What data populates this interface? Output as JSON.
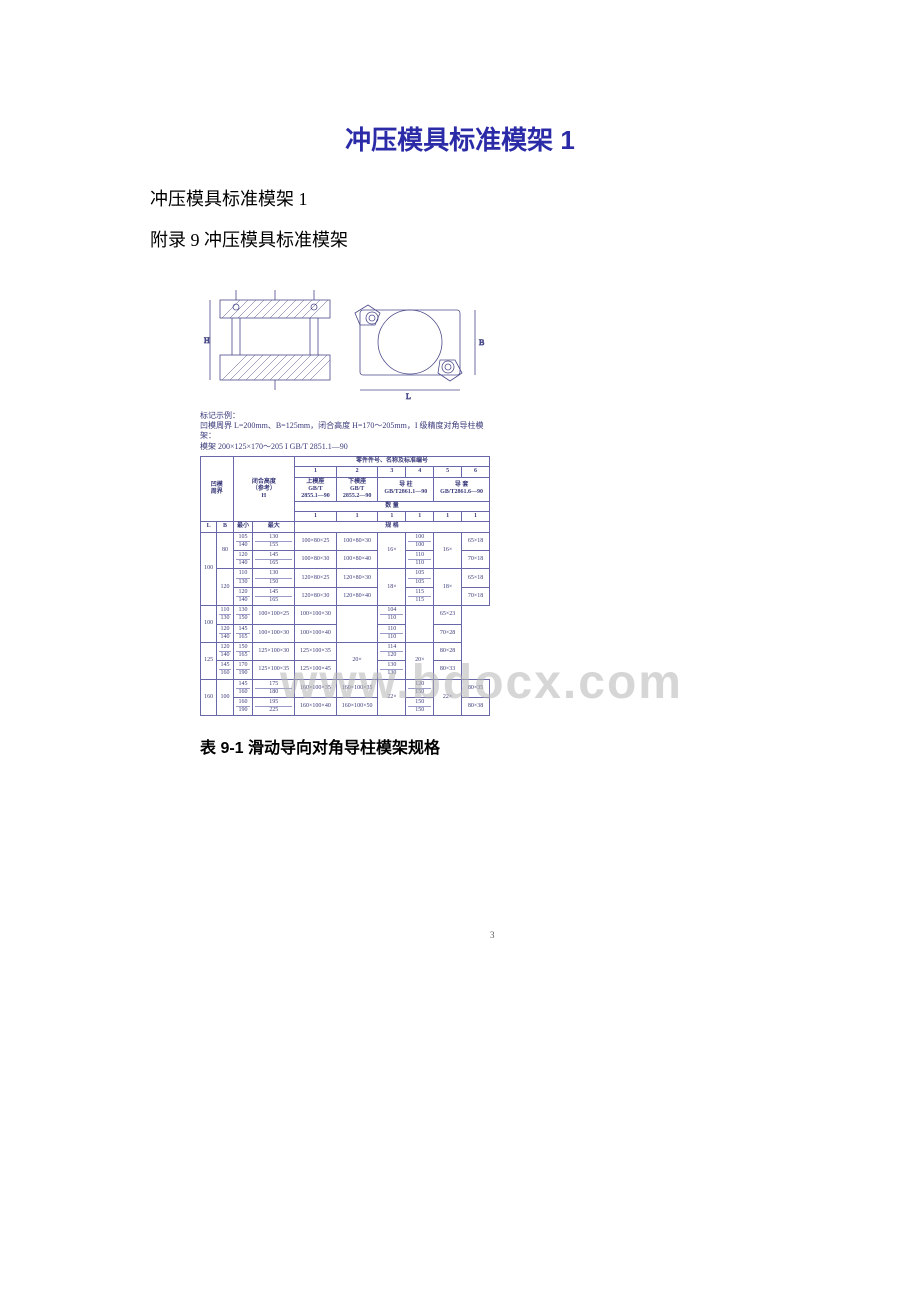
{
  "title": "冲压模具标准模架 1",
  "subtitle1": "冲压模具标准模架 1",
  "subtitle2": "附录 9 冲压模具标准模架",
  "watermark": "www.bdocx.com",
  "page_number": "3",
  "caption_line1": "标记示例：",
  "caption_line2": "凹模周界 L=200mm、B=125mm，闭合高度 H=170～205mm，I 级精度对角导柱模架：",
  "caption_line3": "模架 200×125×170～205 I GB/T 2851.1—90",
  "table": {
    "header_merged": "零件件号、名称及标准编号",
    "cols_num": [
      "1",
      "2",
      "3",
      "4",
      "5",
      "6"
    ],
    "row2_c1": "凹模",
    "row2_c2": "周界",
    "row3_c1": "闭合高度",
    "row3_c2": "（参考）",
    "row3_c3": "H",
    "upper": "上模座",
    "lower": "下模座",
    "gbt": "GB/T",
    "std1": "2855.1—90",
    "std2": "2855.2—90",
    "guide_post": "导  柱",
    "guide_post_std": "GB/T2861.1—90",
    "guide_bush": "导  套",
    "guide_bush_std": "GB/T2861.6—90",
    "qty_label": "数  量",
    "L": "L",
    "B": "B",
    "min": "最小",
    "max": "最大",
    "one": "1",
    "spec_label": "规  格",
    "rows": [
      {
        "L": "100",
        "B": "80",
        "h": [
          [
            "105",
            "130"
          ],
          [
            "140",
            "155"
          ],
          [
            "120",
            "145"
          ],
          [
            "140",
            "165"
          ]
        ],
        "up": [
          "100×80×25",
          "100×80×30"
        ],
        "lo": [
          "100×80×30",
          "100×80×40"
        ],
        "post": [
          [
            "100",
            "120"
          ],
          [
            "100",
            "120"
          ],
          [
            "110",
            "130"
          ],
          [
            "110",
            "130"
          ]
        ],
        "ppre": "16×",
        "bush": [
          "65×18",
          "70×18"
        ],
        "bpre": "16×",
        "b2": [
          "65×18",
          "70×18"
        ]
      },
      {
        "L": "",
        "B": "120",
        "h": [
          [
            "110",
            "130"
          ],
          [
            "130",
            "150"
          ],
          [
            "120",
            "145"
          ],
          [
            "140",
            "165"
          ]
        ],
        "up": [
          "120×80×25",
          "120×80×30"
        ],
        "lo": [
          "120×80×30",
          "120×80×40"
        ],
        "post": [
          [
            "105",
            "125"
          ],
          [
            "105",
            "125"
          ],
          [
            "115",
            "135"
          ],
          [
            "115",
            "140"
          ]
        ],
        "ppre": "18×",
        "bush": [
          "65×18",
          "70×18"
        ],
        "bpre": "18×",
        "b2": [
          "65×28",
          "70×28"
        ]
      },
      {
        "L": "",
        "B": "100",
        "h": [
          [
            "110",
            "130"
          ],
          [
            "130",
            "150"
          ],
          [
            "120",
            "145"
          ],
          [
            "140",
            "165"
          ]
        ],
        "up": [
          "100×100×25",
          "100×100×30"
        ],
        "lo": [
          "100×100×30",
          "100×100×40"
        ],
        "post": [
          [
            "104",
            "125"
          ],
          [
            "110",
            "130"
          ],
          [
            "110",
            "130"
          ],
          [
            "110",
            "150"
          ]
        ],
        "ppre": "",
        "bush": [
          "65×23",
          "70×28"
        ],
        "bpre": "",
        "b2": [
          "65×23",
          "70×28"
        ]
      },
      {
        "L": "",
        "B": "125",
        "h": [
          [
            "120",
            "150"
          ],
          [
            "140",
            "165"
          ],
          [
            "145",
            "170"
          ],
          [
            "160",
            "190"
          ]
        ],
        "up": [
          "125×100×30",
          "125×100×35"
        ],
        "lo": [
          "125×100×35",
          "125×100×45"
        ],
        "post": [
          [
            "114",
            "135"
          ],
          [
            "120",
            "145"
          ],
          [
            "130",
            "150"
          ],
          [
            "130",
            "150"
          ]
        ],
        "ppre": "20×",
        "bush": [
          "80×28",
          "80×33"
        ],
        "bpre": "20×",
        "b2": [
          "80×28",
          "80×33"
        ]
      },
      {
        "L": "160",
        "B": "100",
        "h": [
          [
            "145",
            "175"
          ],
          [
            "160",
            "180"
          ],
          [
            "160",
            "195"
          ],
          [
            "190",
            "225"
          ]
        ],
        "up": [
          "160×100×35",
          "160×100×40"
        ],
        "lo": [
          "160×100×35",
          "160×100×50"
        ],
        "post": [
          [
            "120",
            "150"
          ],
          [
            "150",
            "180"
          ],
          [
            "150",
            "180"
          ],
          [
            "150",
            "190"
          ]
        ],
        "ppre": "22×",
        "bush": [
          "80×35",
          "80×38"
        ],
        "bpre": "22×",
        "b2": [
          "80×35",
          "80×38"
        ]
      }
    ]
  },
  "table_caption": "表 9-1 滑动导向对角导柱模架规格",
  "colors": {
    "title": "#2b2ba8",
    "table_border": "#6868a8",
    "table_text": "#3a3a7a",
    "watermark": "rgba(180,180,180,0.55)"
  }
}
